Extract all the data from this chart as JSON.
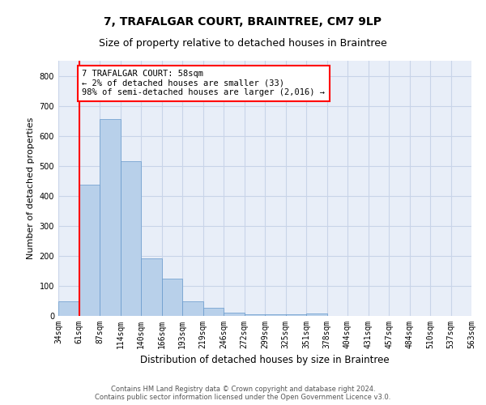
{
  "title": "7, TRAFALGAR COURT, BRAINTREE, CM7 9LP",
  "subtitle": "Size of property relative to detached houses in Braintree",
  "xlabel": "Distribution of detached houses by size in Braintree",
  "ylabel": "Number of detached properties",
  "footer_line1": "Contains HM Land Registry data © Crown copyright and database right 2024.",
  "footer_line2": "Contains public sector information licensed under the Open Government Licence v3.0.",
  "bin_labels": [
    "34sqm",
    "61sqm",
    "87sqm",
    "114sqm",
    "140sqm",
    "166sqm",
    "193sqm",
    "219sqm",
    "246sqm",
    "272sqm",
    "299sqm",
    "325sqm",
    "351sqm",
    "378sqm",
    "404sqm",
    "431sqm",
    "457sqm",
    "484sqm",
    "510sqm",
    "537sqm",
    "563sqm"
  ],
  "bar_values": [
    48,
    437,
    655,
    515,
    192,
    125,
    48,
    27,
    12,
    5,
    5,
    5,
    8,
    0,
    0,
    0,
    0,
    0,
    0,
    0
  ],
  "bar_color": "#b8d0ea",
  "bar_edge_color": "#6699cc",
  "property_line_x": 1.0,
  "annotation_text": "7 TRAFALGAR COURT: 58sqm\n← 2% of detached houses are smaller (33)\n98% of semi-detached houses are larger (2,016) →",
  "annotation_box_color": "white",
  "annotation_box_edge_color": "red",
  "vline_color": "red",
  "ylim": [
    0,
    850
  ],
  "yticks": [
    0,
    100,
    200,
    300,
    400,
    500,
    600,
    700,
    800
  ],
  "grid_color": "#c8d4e8",
  "background_color": "#e8eef8",
  "title_fontsize": 10,
  "subtitle_fontsize": 9,
  "xlabel_fontsize": 8.5,
  "ylabel_fontsize": 8,
  "tick_fontsize": 7,
  "annotation_fontsize": 7.5,
  "footer_fontsize": 6
}
